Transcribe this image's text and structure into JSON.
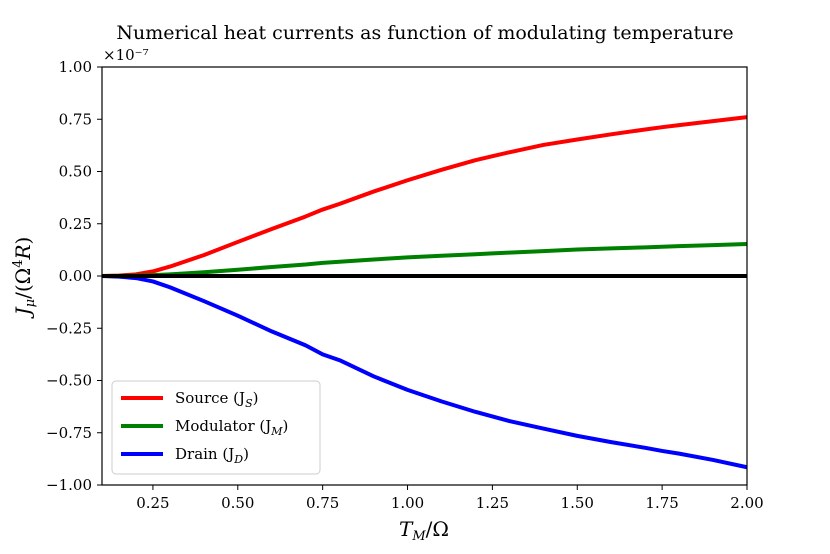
{
  "chart_data": {
    "type": "line",
    "title": "Numerical heat currents as function of modulating temperature",
    "xlabel": "T_M/Ω",
    "ylabel": "J_μ/(Ω⁴R)",
    "y_scale_label": "×10⁻⁷",
    "xlim": [
      0.1,
      2.0
    ],
    "ylim": [
      -1.0,
      1.0
    ],
    "x_ticks": [
      0.25,
      0.5,
      0.75,
      1.0,
      1.25,
      1.5,
      1.75,
      2.0
    ],
    "x_tick_labels": [
      "0.25",
      "0.50",
      "0.75",
      "1.00",
      "1.25",
      "1.50",
      "1.75",
      "2.00"
    ],
    "y_ticks": [
      -1.0,
      -0.75,
      -0.5,
      -0.25,
      0.0,
      0.25,
      0.5,
      0.75,
      1.0
    ],
    "y_tick_labels": [
      "−1.00",
      "−0.75",
      "−0.50",
      "−0.25",
      "0.00",
      "0.25",
      "0.50",
      "0.75",
      "1.00"
    ],
    "legend_position": "lower-left",
    "series": [
      {
        "name": "Source (J_S)",
        "legend_label": "Source (J",
        "legend_sub": "S",
        "color": "#ff0000",
        "x": [
          0.1,
          0.15,
          0.2,
          0.25,
          0.3,
          0.4,
          0.5,
          0.6,
          0.7,
          0.75,
          0.8,
          0.9,
          1.0,
          1.1,
          1.2,
          1.25,
          1.3,
          1.4,
          1.5,
          1.6,
          1.7,
          1.75,
          1.8,
          1.9,
          2.0
        ],
        "values": [
          0.0,
          0.002,
          0.008,
          0.022,
          0.045,
          0.1,
          0.163,
          0.225,
          0.285,
          0.318,
          0.345,
          0.404,
          0.458,
          0.508,
          0.554,
          0.573,
          0.592,
          0.627,
          0.653,
          0.678,
          0.701,
          0.712,
          0.722,
          0.741,
          0.76
        ]
      },
      {
        "name": "Modulator (J_M)",
        "legend_label": "Modulator (J",
        "legend_sub": "M",
        "color": "#008000",
        "x": [
          0.1,
          0.15,
          0.2,
          0.25,
          0.3,
          0.4,
          0.5,
          0.6,
          0.7,
          0.75,
          0.8,
          0.9,
          1.0,
          1.1,
          1.2,
          1.25,
          1.3,
          1.4,
          1.5,
          1.6,
          1.7,
          1.75,
          1.8,
          1.9,
          2.0
        ],
        "values": [
          0.0,
          0.0005,
          0.002,
          0.004,
          0.008,
          0.018,
          0.03,
          0.043,
          0.055,
          0.063,
          0.068,
          0.079,
          0.089,
          0.097,
          0.104,
          0.108,
          0.112,
          0.119,
          0.127,
          0.132,
          0.137,
          0.14,
          0.143,
          0.148,
          0.153
        ]
      },
      {
        "name": "Drain (J_D)",
        "legend_label": "Drain (J",
        "legend_sub": "D",
        "color": "#0000ff",
        "x": [
          0.1,
          0.15,
          0.2,
          0.25,
          0.3,
          0.4,
          0.5,
          0.6,
          0.7,
          0.75,
          0.8,
          0.9,
          1.0,
          1.1,
          1.2,
          1.25,
          1.3,
          1.4,
          1.5,
          1.6,
          1.7,
          1.75,
          1.8,
          1.9,
          2.0
        ],
        "values": [
          0.0,
          -0.003,
          -0.01,
          -0.026,
          -0.054,
          -0.12,
          -0.19,
          -0.265,
          -0.332,
          -0.375,
          -0.403,
          -0.48,
          -0.545,
          -0.6,
          -0.65,
          -0.672,
          -0.694,
          -0.73,
          -0.765,
          -0.795,
          -0.822,
          -0.837,
          -0.85,
          -0.88,
          -0.915
        ]
      },
      {
        "name": "Zero line",
        "color": "#000000",
        "x": [
          0.1,
          2.0
        ],
        "values": [
          0.0,
          0.0
        ]
      }
    ]
  }
}
